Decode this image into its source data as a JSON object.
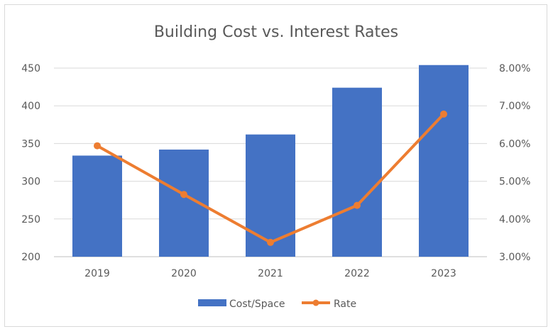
{
  "chart_data": {
    "type": "bar+line",
    "title": "Building Cost vs. Interest Rates",
    "categories": [
      "2019",
      "2020",
      "2021",
      "2022",
      "2023"
    ],
    "series": [
      {
        "name": "Cost/Space",
        "type": "bar",
        "axis": "left",
        "color": "#4472C4",
        "values": [
          334,
          342,
          362,
          424,
          454
        ]
      },
      {
        "name": "Rate",
        "type": "line",
        "axis": "right",
        "color": "#ED7D31",
        "values": [
          5.94,
          4.65,
          3.38,
          4.36,
          6.78
        ]
      }
    ],
    "y_left": {
      "ticks": [
        "200",
        "250",
        "300",
        "350",
        "400",
        "450"
      ],
      "ylim": [
        200,
        475
      ]
    },
    "y_right": {
      "ticks": [
        "3.00%",
        "4.00%",
        "5.00%",
        "6.00%",
        "7.00%",
        "8.00%"
      ],
      "ylim": [
        3,
        8.2
      ]
    },
    "grid": true,
    "legend_position": "bottom"
  }
}
